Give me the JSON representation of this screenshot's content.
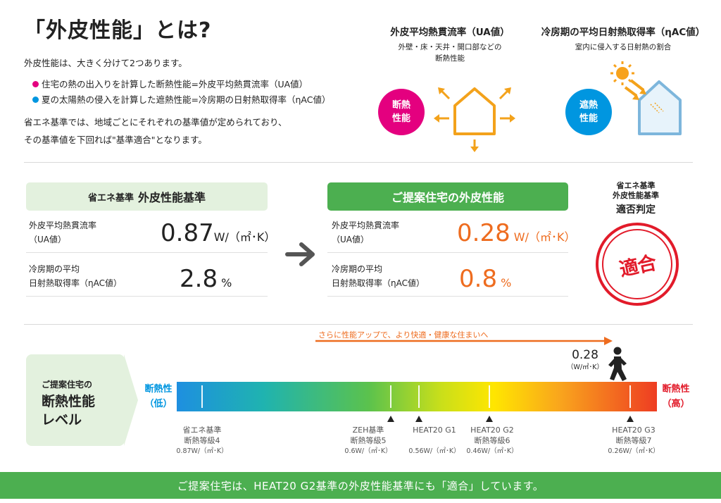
{
  "title": "「外皮性能」とは?",
  "intro": {
    "lead": "外皮性能は、大きく分けて2つあります。",
    "bullets": [
      {
        "text": "住宅の熱の出入りを計算した断熱性能=外皮平均熱貫流率（UA値）",
        "color": "#e4007f"
      },
      {
        "text": "夏の太陽熱の侵入を計算した遮熱性能=冷房期の日射熱取得率（ηAC値）",
        "color": "#0096e0"
      }
    ],
    "line3": "省エネ基準では、地域ごとにそれぞれの基準値が定められており、",
    "line4": "その基準値を下回れば\"基準適合\"となります。"
  },
  "ua_panel": {
    "title": "外皮平均熱貫流率（UA値）",
    "sub1": "外壁・床・天井・開口部などの",
    "sub2": "断熱性能",
    "badge": "断熱\n性能",
    "badge_color": "#e4007f"
  },
  "eta_panel": {
    "title": "冷房期の平均日射熱取得率（ηAC値）",
    "sub1": "室内に侵入する日射熱の割合",
    "badge": "遮熱\n性能",
    "badge_color": "#0096e0"
  },
  "standard_box": {
    "header_prefix": "省エネ基準",
    "header_main": "外皮性能基準",
    "rows": [
      {
        "label1": "外皮平均熱貫流率",
        "label2": "（UA値）",
        "value": "0.87",
        "unit": "W/（㎡･K）"
      },
      {
        "label1": "冷房期の平均",
        "label2": "日射熱取得率（ηAC値）",
        "value": "2.8",
        "unit": "%"
      }
    ]
  },
  "proposal_box": {
    "header": "ご提案住宅の外皮性能",
    "rows": [
      {
        "label1": "外皮平均熱貫流率",
        "label2": "（UA値）",
        "value": "0.28",
        "unit": "W/（㎡･K）"
      },
      {
        "label1": "冷房期の平均",
        "label2": "日射熱取得率（ηAC値）",
        "value": "0.8",
        "unit": "%"
      }
    ]
  },
  "judgement": {
    "line1": "省エネ基準",
    "line2": "外皮性能基準",
    "line3": "適否判定",
    "stamp": "適合"
  },
  "level": {
    "side_small": "ご提案住宅の",
    "side_big1": "断熱性能",
    "side_big2": "レベル",
    "arrow_text": "さらに性能アップで、より快適・健康な住まいへ",
    "low_label1": "断熱性",
    "low_label2": "（低）",
    "high_label1": "断熱性",
    "high_label2": "（高）",
    "current_value": "0.28",
    "current_unit": "（W/㎡･K）",
    "ticks": [
      {
        "name": "省エネ基準",
        "grade": "断熱等級4",
        "value": "0.87W/（㎡･K）"
      },
      {
        "name": "ZEH基準",
        "grade": "断熱等級5",
        "value": "0.6W/（㎡･K）"
      },
      {
        "name": "HEAT20 G1",
        "grade": "",
        "value": "0.56W/（㎡･K）"
      },
      {
        "name": "HEAT20 G2",
        "grade": "断熱等級6",
        "value": "0.46W/（㎡･K）"
      },
      {
        "name": "HEAT20 G3",
        "grade": "断熱等級7",
        "value": "0.26W/（㎡･K）"
      }
    ]
  },
  "footer": "ご提案住宅は、HEAT20 G2基準の外皮性能基準にも「適合」しています。",
  "colors": {
    "green": "#4caf50",
    "light_green": "#e3f1de",
    "orange": "#ee6c1f",
    "stamp_red": "#e21b2a",
    "house_orange": "#f3a21b",
    "house_blue": "#7db6dc"
  }
}
